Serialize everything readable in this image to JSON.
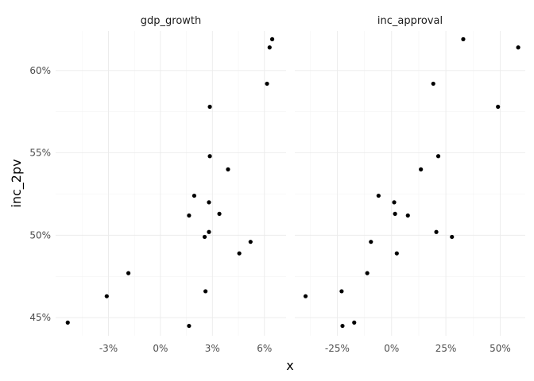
{
  "chart_data": {
    "type": "scatter",
    "facet_variable": "x",
    "xlabel": "x",
    "ylabel": "inc_2pv",
    "ylim": [
      0.439,
      0.624
    ],
    "y_ticks": [
      0.45,
      0.5,
      0.55,
      0.6
    ],
    "y_tick_labels": [
      "45%",
      "50%",
      "55%",
      "60%"
    ],
    "grid": true,
    "theme": "minimal",
    "point_color": "#000000",
    "panels": [
      {
        "strip": "gdp_growth",
        "xlim": [
          -0.0605,
          0.0725
        ],
        "x_ticks": [
          -0.03,
          0.0,
          0.03,
          0.06
        ],
        "x_tick_labels": [
          "-3%",
          "0%",
          "3%",
          "6%"
        ],
        "points": [
          {
            "x": -0.0535,
            "y": 0.447
          },
          {
            "x": -0.031,
            "y": 0.463
          },
          {
            "x": -0.0185,
            "y": 0.477
          },
          {
            "x": 0.0165,
            "y": 0.445
          },
          {
            "x": 0.0165,
            "y": 0.512
          },
          {
            "x": 0.0195,
            "y": 0.524
          },
          {
            "x": 0.0255,
            "y": 0.499
          },
          {
            "x": 0.026,
            "y": 0.466
          },
          {
            "x": 0.028,
            "y": 0.502
          },
          {
            "x": 0.028,
            "y": 0.52
          },
          {
            "x": 0.0285,
            "y": 0.548
          },
          {
            "x": 0.0285,
            "y": 0.578
          },
          {
            "x": 0.034,
            "y": 0.513
          },
          {
            "x": 0.039,
            "y": 0.54
          },
          {
            "x": 0.0455,
            "y": 0.489
          },
          {
            "x": 0.052,
            "y": 0.496
          },
          {
            "x": 0.0615,
            "y": 0.592
          },
          {
            "x": 0.063,
            "y": 0.614
          },
          {
            "x": 0.0645,
            "y": 0.619
          }
        ]
      },
      {
        "strip": "inc_approval",
        "xlim": [
          -0.4455,
          0.6155
        ],
        "x_ticks": [
          -0.25,
          0.0,
          0.25,
          0.5
        ],
        "x_tick_labels": [
          "-25%",
          "0%",
          "25%",
          "50%"
        ],
        "points": [
          {
            "x": -0.396,
            "y": 0.463
          },
          {
            "x": -0.23,
            "y": 0.466
          },
          {
            "x": -0.226,
            "y": 0.445
          },
          {
            "x": -0.172,
            "y": 0.447
          },
          {
            "x": -0.112,
            "y": 0.477
          },
          {
            "x": -0.095,
            "y": 0.496
          },
          {
            "x": -0.06,
            "y": 0.524
          },
          {
            "x": 0.012,
            "y": 0.52
          },
          {
            "x": 0.016,
            "y": 0.513
          },
          {
            "x": 0.024,
            "y": 0.489
          },
          {
            "x": 0.075,
            "y": 0.512
          },
          {
            "x": 0.135,
            "y": 0.54
          },
          {
            "x": 0.192,
            "y": 0.592
          },
          {
            "x": 0.206,
            "y": 0.502
          },
          {
            "x": 0.215,
            "y": 0.548
          },
          {
            "x": 0.278,
            "y": 0.499
          },
          {
            "x": 0.33,
            "y": 0.619
          },
          {
            "x": 0.49,
            "y": 0.578
          },
          {
            "x": 0.583,
            "y": 0.614
          }
        ]
      }
    ]
  }
}
